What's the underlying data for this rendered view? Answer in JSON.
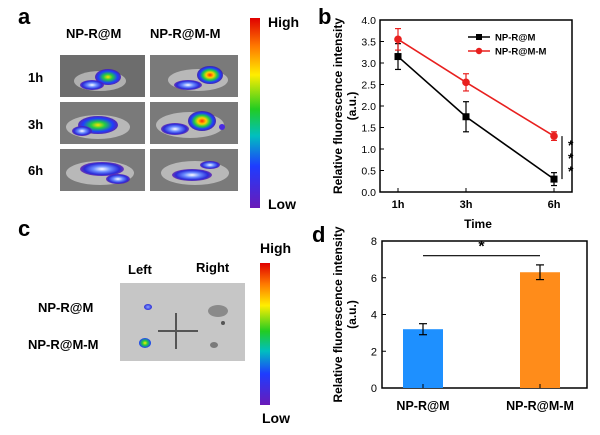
{
  "panel_a": {
    "label": "a",
    "columns": [
      "NP-R@M",
      "NP-R@M-M"
    ],
    "rows": [
      "1h",
      "3h",
      "6h"
    ],
    "scale_high": "High",
    "scale_low": "Low"
  },
  "panel_b": {
    "label": "b"
  },
  "panel_c": {
    "label": "c",
    "columns": [
      "Left",
      "Right"
    ],
    "rows": [
      "NP-R@M",
      "NP-R@M-M"
    ],
    "scale_high": "High",
    "scale_low": "Low"
  },
  "panel_d": {
    "label": "d"
  },
  "chart_data": [
    {
      "type": "line",
      "panel": "b",
      "categories": [
        "1h",
        "3h",
        "6h"
      ],
      "series": [
        {
          "name": "NP-R@M",
          "values": [
            3.15,
            1.75,
            0.3
          ],
          "errors": [
            0.3,
            0.35,
            0.15
          ],
          "color": "#000000"
        },
        {
          "name": "NP-R@M-M",
          "values": [
            3.55,
            2.55,
            1.3
          ],
          "errors": [
            0.25,
            0.2,
            0.1
          ],
          "color": "#e8201f"
        }
      ],
      "xlabel": "Time",
      "ylabel": "Relative fluorescence intensity (a.u.)",
      "ylim": [
        0,
        4.0
      ],
      "yticks": [
        "0.0",
        "0.5",
        "1.0",
        "1.5",
        "2.0",
        "2.5",
        "3.0",
        "3.5",
        "4.0"
      ],
      "significance": "***",
      "legend": "top-right"
    },
    {
      "type": "bar",
      "panel": "d",
      "categories": [
        "NP-R@M",
        "NP-R@M-M"
      ],
      "values": [
        3.2,
        6.3
      ],
      "errors": [
        0.3,
        0.4
      ],
      "colors": [
        "#1e90ff",
        "#ff8c1a"
      ],
      "ylabel": "Relative fluorescence intensity (a.u.)",
      "ylim": [
        0,
        8
      ],
      "yticks": [
        "0",
        "2",
        "4",
        "6",
        "8"
      ],
      "significance": "*"
    }
  ]
}
